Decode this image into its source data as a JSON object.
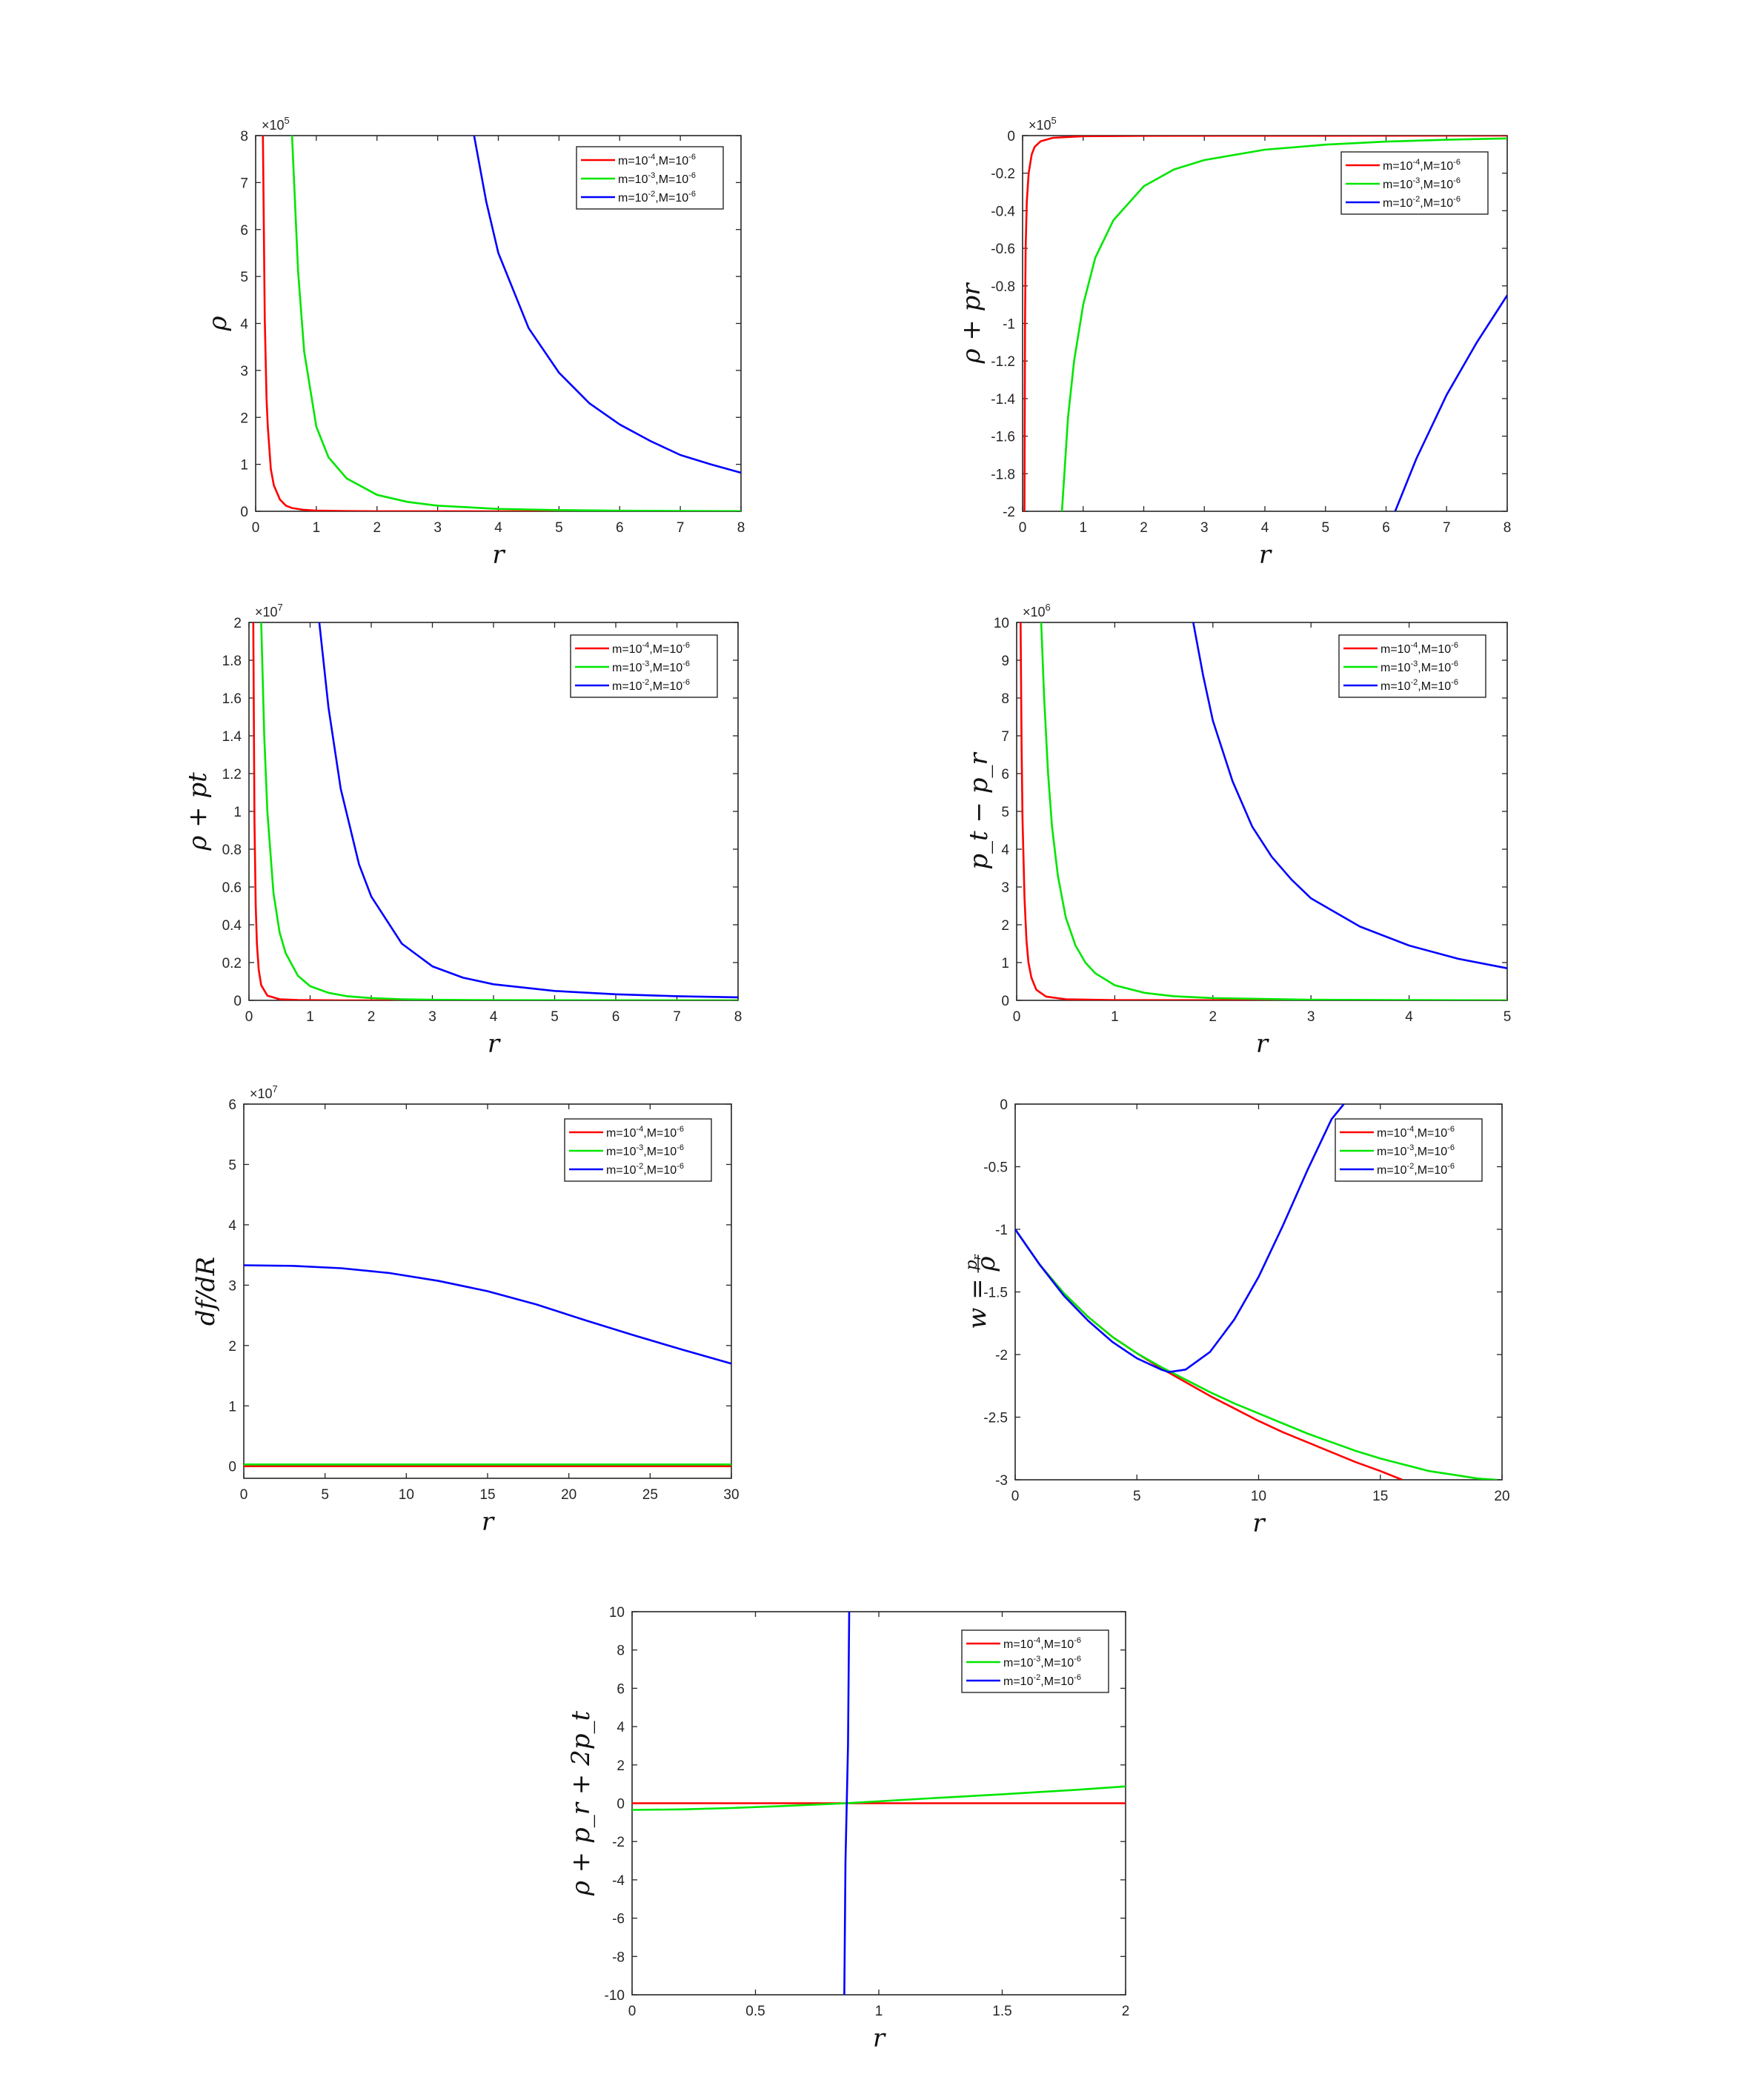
{
  "colors": {
    "series_1": "#ff0000",
    "series_2": "#00e600",
    "series_3": "#0000ff"
  },
  "legend": {
    "entries": [
      {
        "m_base": "m=10",
        "m_exp": "-4",
        "M_base": ",M=10",
        "M_exp": "-6"
      },
      {
        "m_base": "m=10",
        "m_exp": "-3",
        "M_base": ",M=10",
        "M_exp": "-6"
      },
      {
        "m_base": "m=10",
        "m_exp": "-2",
        "M_base": ",M=10",
        "M_exp": "-6"
      }
    ],
    "placement": "top-right"
  },
  "chart_data": [
    {
      "id": "rho",
      "type": "line",
      "ylabel": "ρ",
      "xlabel": "r",
      "xlim": [
        0,
        8
      ],
      "ylim": [
        0,
        8
      ],
      "xticks": [
        0,
        1,
        2,
        3,
        4,
        5,
        6,
        7,
        8
      ],
      "yticks": [
        0,
        1,
        2,
        3,
        4,
        5,
        6,
        7,
        8
      ],
      "y_multiplier": {
        "base": "×10",
        "exp": "5"
      },
      "series": [
        {
          "label": "m=10^-4,M=10^-6",
          "x": [
            0.12,
            0.15,
            0.18,
            0.2,
            0.25,
            0.3,
            0.4,
            0.5,
            0.6,
            0.8,
            1,
            1.5,
            2,
            3,
            4,
            8
          ],
          "y": [
            8,
            4.1,
            2.4,
            1.8,
            0.9,
            0.55,
            0.25,
            0.12,
            0.07,
            0.03,
            0.015,
            0.005,
            0.002,
            0.0008,
            0.0003,
            0
          ]
        },
        {
          "label": "m=10^-3,M=10^-6",
          "x": [
            0.6,
            0.7,
            0.8,
            1,
            1.2,
            1.5,
            2,
            2.5,
            3,
            4,
            5,
            6,
            7,
            8
          ],
          "y": [
            8,
            5.1,
            3.4,
            1.8,
            1.15,
            0.7,
            0.35,
            0.2,
            0.12,
            0.05,
            0.025,
            0.012,
            0.006,
            0.003
          ]
        },
        {
          "label": "m=10^-2,M=10^-6",
          "x": [
            3.6,
            3.8,
            4,
            4.5,
            5,
            5.5,
            6,
            6.5,
            7,
            7.5,
            8
          ],
          "y": [
            8,
            6.6,
            5.5,
            3.9,
            2.95,
            2.3,
            1.85,
            1.5,
            1.2,
            1.0,
            0.82
          ]
        }
      ]
    },
    {
      "id": "rho_plus_pr",
      "type": "line",
      "ylabel": "ρ + pr",
      "xlabel": "r",
      "xlim": [
        0,
        8
      ],
      "ylim": [
        -2,
        0
      ],
      "xticks": [
        0,
        1,
        2,
        3,
        4,
        5,
        6,
        7,
        8
      ],
      "yticks": [
        -2,
        -1.8,
        -1.6,
        -1.4,
        -1.2,
        -1,
        -0.8,
        -0.6,
        -0.4,
        -0.2,
        0
      ],
      "ytick_labels": [
        "-2",
        "-1.8",
        "-1.6",
        "-1.4",
        "-1.2",
        "-1",
        "-0.8",
        "-0.6",
        "-0.4",
        "-0.2",
        "0"
      ],
      "y_multiplier": {
        "base": "×10",
        "exp": "5"
      },
      "series": [
        {
          "label": "m=10^-4,M=10^-6",
          "x": [
            0.03,
            0.04,
            0.05,
            0.07,
            0.1,
            0.15,
            0.2,
            0.3,
            0.5,
            1,
            2,
            8
          ],
          "y": [
            -2,
            -1.0,
            -0.6,
            -0.35,
            -0.2,
            -0.1,
            -0.06,
            -0.03,
            -0.012,
            -0.003,
            -0.001,
            0
          ]
        },
        {
          "label": "m=10^-3,M=10^-6",
          "x": [
            0.65,
            0.75,
            0.85,
            1,
            1.2,
            1.5,
            2,
            2.5,
            3,
            4,
            5,
            6,
            7,
            8
          ],
          "y": [
            -2,
            -1.5,
            -1.2,
            -0.9,
            -0.65,
            -0.45,
            -0.27,
            -0.18,
            -0.13,
            -0.075,
            -0.048,
            -0.032,
            -0.022,
            -0.015
          ]
        },
        {
          "label": "m=10^-2,M=10^-6",
          "x": [
            6.15,
            6.5,
            7,
            7.5,
            8
          ],
          "y": [
            -2,
            -1.72,
            -1.38,
            -1.1,
            -0.85
          ]
        }
      ]
    },
    {
      "id": "rho_plus_pt",
      "type": "line",
      "ylabel": "ρ + pt",
      "xlabel": "r",
      "xlim": [
        0,
        8
      ],
      "ylim": [
        0,
        2
      ],
      "xticks": [
        0,
        1,
        2,
        3,
        4,
        5,
        6,
        7,
        8
      ],
      "yticks": [
        0,
        0.2,
        0.4,
        0.6,
        0.8,
        1,
        1.2,
        1.4,
        1.6,
        1.8,
        2
      ],
      "ytick_labels": [
        "0",
        "0.2",
        "0.4",
        "0.6",
        "0.8",
        "1",
        "1.2",
        "1.4",
        "1.6",
        "1.8",
        "2"
      ],
      "y_multiplier": {
        "base": "×10",
        "exp": "7"
      },
      "series": [
        {
          "label": "m=10^-4,M=10^-6",
          "x": [
            0.07,
            0.09,
            0.11,
            0.13,
            0.16,
            0.2,
            0.3,
            0.5,
            0.8,
            1.5,
            8
          ],
          "y": [
            2,
            0.95,
            0.5,
            0.3,
            0.16,
            0.08,
            0.025,
            0.006,
            0.002,
            0,
            0
          ]
        },
        {
          "label": "m=10^-3,M=10^-6",
          "x": [
            0.2,
            0.25,
            0.3,
            0.4,
            0.5,
            0.6,
            0.8,
            1,
            1.3,
            1.6,
            2,
            2.5,
            3,
            4,
            8
          ],
          "y": [
            2,
            1.4,
            1.0,
            0.57,
            0.36,
            0.25,
            0.13,
            0.075,
            0.04,
            0.022,
            0.012,
            0.006,
            0.003,
            0.001,
            0
          ]
        },
        {
          "label": "m=10^-2,M=10^-6",
          "x": [
            1.15,
            1.3,
            1.5,
            1.8,
            2,
            2.5,
            3,
            3.5,
            4,
            5,
            6,
            7,
            8
          ],
          "y": [
            2,
            1.55,
            1.12,
            0.72,
            0.55,
            0.3,
            0.18,
            0.12,
            0.085,
            0.05,
            0.032,
            0.022,
            0.016
          ]
        }
      ]
    },
    {
      "id": "pt_minus_pr",
      "type": "line",
      "ylabel": "p_t − p_r",
      "xlabel": "r",
      "xlim": [
        0,
        5
      ],
      "ylim": [
        0,
        10
      ],
      "xticks": [
        0,
        1,
        2,
        3,
        4,
        5
      ],
      "yticks": [
        0,
        1,
        2,
        3,
        4,
        5,
        6,
        7,
        8,
        9,
        10
      ],
      "y_multiplier": {
        "base": "×10",
        "exp": "6"
      },
      "series": [
        {
          "label": "m=10^-4,M=10^-6",
          "x": [
            0.04,
            0.05,
            0.06,
            0.08,
            0.1,
            0.12,
            0.15,
            0.2,
            0.3,
            0.5,
            1,
            5
          ],
          "y": [
            10,
            6.8,
            4.8,
            2.7,
            1.6,
            1.0,
            0.6,
            0.28,
            0.1,
            0.03,
            0.005,
            0
          ]
        },
        {
          "label": "m=10^-3,M=10^-6",
          "x": [
            0.25,
            0.28,
            0.32,
            0.36,
            0.42,
            0.5,
            0.6,
            0.7,
            0.8,
            1,
            1.3,
            1.6,
            2,
            3,
            5
          ],
          "y": [
            10,
            8.0,
            6.0,
            4.6,
            3.3,
            2.2,
            1.45,
            1.0,
            0.72,
            0.4,
            0.2,
            0.11,
            0.06,
            0.015,
            0
          ]
        },
        {
          "label": "m=10^-2,M=10^-6",
          "x": [
            1.8,
            1.9,
            2,
            2.2,
            2.4,
            2.6,
            2.8,
            3,
            3.5,
            4,
            4.5,
            5
          ],
          "y": [
            10,
            8.6,
            7.4,
            5.8,
            4.6,
            3.8,
            3.2,
            2.7,
            1.95,
            1.45,
            1.1,
            0.85
          ]
        }
      ]
    },
    {
      "id": "df_dR",
      "type": "line",
      "ylabel": "df/dR",
      "xlabel": "r",
      "xlim": [
        0,
        30
      ],
      "ylim": [
        -0.2,
        6
      ],
      "xticks": [
        0,
        5,
        10,
        15,
        20,
        25,
        30
      ],
      "yticks": [
        0,
        1,
        2,
        3,
        4,
        5,
        6
      ],
      "y_multiplier": {
        "base": "×10",
        "exp": "7"
      },
      "series": [
        {
          "label": "m=10^-4,M=10^-6",
          "x": [
            0,
            30
          ],
          "y": [
            0,
            0
          ]
        },
        {
          "label": "m=10^-3,M=10^-6",
          "x": [
            0,
            30
          ],
          "y": [
            0.03,
            0.03
          ]
        },
        {
          "label": "m=10^-2,M=10^-6",
          "x": [
            0,
            3,
            6,
            9,
            12,
            15,
            18,
            21,
            24,
            27,
            30
          ],
          "y": [
            3.33,
            3.32,
            3.28,
            3.2,
            3.07,
            2.9,
            2.68,
            2.42,
            2.17,
            1.93,
            1.7
          ]
        }
      ]
    },
    {
      "id": "w",
      "type": "line",
      "ylabel_main": "w = ",
      "ylabel_num": "p",
      "ylabel_num_sub": "r",
      "ylabel_den": "ρ",
      "xlabel": "r",
      "xlim": [
        0,
        20
      ],
      "ylim": [
        -3,
        0
      ],
      "xticks": [
        0,
        5,
        10,
        15,
        20
      ],
      "yticks": [
        -3,
        -2.5,
        -2,
        -1.5,
        -1,
        -0.5,
        0
      ],
      "ytick_labels": [
        "-3",
        "-2.5",
        "-2",
        "-1.5",
        "-1",
        "-0.5",
        "0"
      ],
      "series": [
        {
          "label": "m=10^-4,M=10^-6",
          "x": [
            0,
            1,
            2,
            3,
            4,
            5,
            6,
            7,
            8,
            9,
            10,
            11,
            12,
            13,
            14,
            15,
            15.9
          ],
          "y": [
            -1,
            -1.28,
            -1.51,
            -1.7,
            -1.86,
            -1.99,
            -2.11,
            -2.22,
            -2.33,
            -2.43,
            -2.53,
            -2.62,
            -2.7,
            -2.78,
            -2.86,
            -2.93,
            -3
          ]
        },
        {
          "label": "m=10^-3,M=10^-6",
          "x": [
            0,
            1,
            2,
            3,
            4,
            5,
            6,
            7,
            8,
            9,
            10,
            11,
            12,
            13,
            14,
            15,
            16,
            17,
            18,
            19,
            19.8
          ],
          "y": [
            -1,
            -1.28,
            -1.51,
            -1.7,
            -1.86,
            -1.99,
            -2.1,
            -2.2,
            -2.3,
            -2.39,
            -2.47,
            -2.55,
            -2.63,
            -2.7,
            -2.77,
            -2.83,
            -2.88,
            -2.93,
            -2.96,
            -2.99,
            -3
          ]
        },
        {
          "label": "m=10^-2,M=10^-6",
          "x": [
            0,
            1,
            2,
            3,
            4,
            5,
            6,
            6.3,
            7,
            8,
            9,
            10,
            11,
            12,
            13,
            13.5
          ],
          "y": [
            -1,
            -1.28,
            -1.53,
            -1.73,
            -1.9,
            -2.03,
            -2.12,
            -2.14,
            -2.12,
            -1.98,
            -1.72,
            -1.38,
            -0.97,
            -0.53,
            -0.12,
            0
          ]
        }
      ]
    },
    {
      "id": "sec",
      "type": "line",
      "ylabel": "ρ + p_r + 2p_t",
      "xlabel": "r",
      "xlim": [
        0,
        2
      ],
      "ylim": [
        -10,
        10
      ],
      "xticks": [
        0,
        0.5,
        1,
        1.5,
        2
      ],
      "xtick_labels": [
        "0",
        "0.5",
        "1",
        "1.5",
        "2"
      ],
      "yticks": [
        -10,
        -8,
        -6,
        -4,
        -2,
        0,
        2,
        4,
        6,
        8,
        10
      ],
      "series": [
        {
          "label": "m=10^-4,M=10^-6",
          "x": [
            0,
            2
          ],
          "y": [
            0,
            0
          ]
        },
        {
          "label": "m=10^-3,M=10^-6",
          "x": [
            0,
            0.2,
            0.4,
            0.6,
            0.87,
            1.2,
            1.5,
            1.8,
            2
          ],
          "y": [
            -0.35,
            -0.32,
            -0.25,
            -0.15,
            0,
            0.25,
            0.47,
            0.7,
            0.88
          ]
        },
        {
          "label": "m=10^-2,M=10^-6",
          "x": [
            0.86,
            0.865,
            0.875,
            0.88
          ],
          "y": [
            -10,
            -3,
            3,
            10
          ]
        }
      ]
    }
  ]
}
